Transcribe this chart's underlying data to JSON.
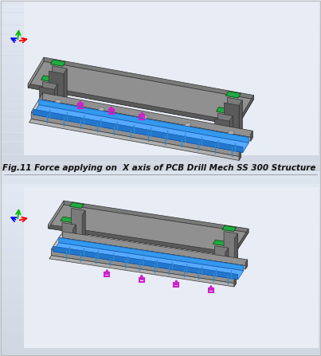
{
  "title": "Fig.11 Force applying on  X axis of PCB Drill Mech SS 300 Structure",
  "title_fontsize": 7.5,
  "title_fontweight": "bold",
  "title_fontstyle": "italic",
  "fig_width": 4.03,
  "fig_height": 4.47,
  "bg_top": "#dce4ee",
  "bg_top2": "#e8edf5",
  "bg_bot": "#dce4ee",
  "bg_bot2": "#e8edf5",
  "gray1": "#7a7a7a",
  "gray2": "#909090",
  "gray3": "#b0b0b0",
  "gray4": "#5a5a5a",
  "gray5": "#c8c8c8",
  "blue1": "#3399ee",
  "blue2": "#55aaff",
  "blue3": "#88ccff",
  "magenta": "#cc22cc",
  "green": "#22aa44",
  "sep_color": "#888888",
  "caption_color": "#111111"
}
